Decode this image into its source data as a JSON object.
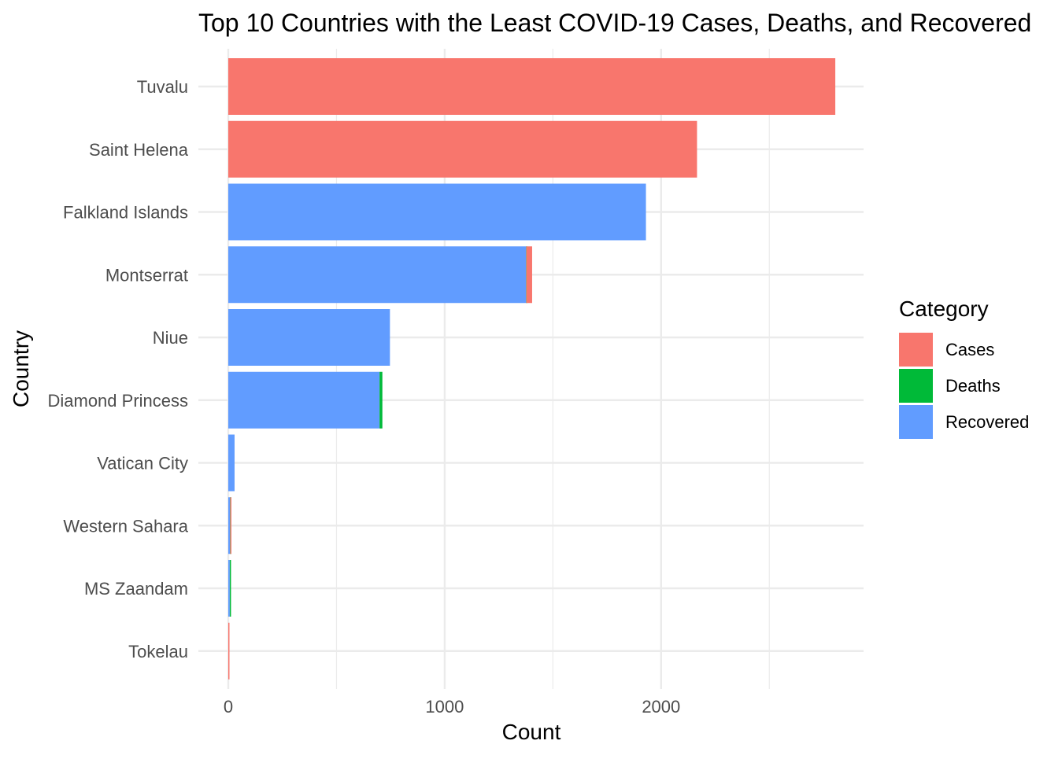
{
  "chart_data": {
    "type": "bar",
    "orientation": "horizontal",
    "stacked": true,
    "title": "Top 10 Countries with the Least COVID-19 Cases, Deaths, and Recovered",
    "xlabel": "Count",
    "ylabel": "Country",
    "xlim": [
      0,
      2950
    ],
    "x_ticks": [
      0,
      1000,
      2000
    ],
    "x_tick_labels": [
      "0",
      "1000",
      "2000"
    ],
    "grid": true,
    "legend": {
      "title": "Category",
      "position": "right"
    },
    "categories": [
      "Tuvalu",
      "Saint Helena",
      "Falkland Islands",
      "Montserrat",
      "Niue",
      "Diamond Princess",
      "Vatican City",
      "Western Sahara",
      "MS Zaandam",
      "Tokelau"
    ],
    "series": [
      {
        "name": "Recovered",
        "color": "#619CFF",
        "values": [
          0,
          0,
          1930,
          1376,
          747,
          699,
          29,
          8,
          7,
          0
        ]
      },
      {
        "name": "Deaths",
        "color": "#00BA38",
        "values": [
          0,
          0,
          0,
          1,
          0,
          13,
          0,
          1,
          2,
          0
        ]
      },
      {
        "name": "Cases",
        "color": "#F8766D",
        "values": [
          2805,
          2166,
          0,
          27,
          0,
          0,
          0,
          1,
          0,
          5
        ]
      }
    ],
    "legend_order": [
      "Cases",
      "Deaths",
      "Recovered"
    ]
  }
}
